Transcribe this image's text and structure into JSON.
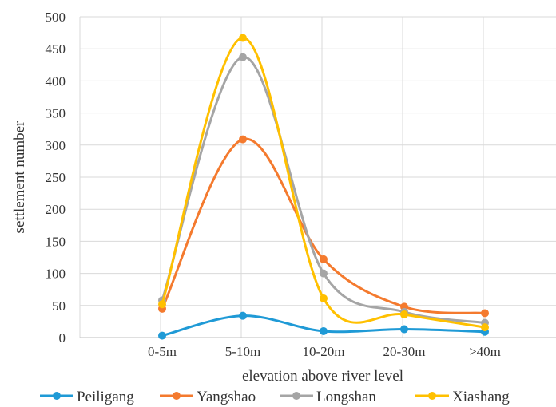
{
  "chart_data": {
    "type": "line",
    "smooth": true,
    "categories": [
      "0-5m",
      "5-10m",
      "10-20m",
      "20-30m",
      ">40m"
    ],
    "xlabel": "elevation above river level",
    "ylabel": "settlement number",
    "ylim": [
      0,
      500
    ],
    "yticks": [
      0,
      50,
      100,
      150,
      200,
      250,
      300,
      350,
      400,
      450,
      500
    ],
    "grid": true,
    "legend_position": "bottom",
    "series": [
      {
        "name": "Peiligang",
        "color": "#1f9ad6",
        "values": [
          3,
          34,
          10,
          13,
          9
        ]
      },
      {
        "name": "Yangshao",
        "color": "#f47a2e",
        "values": [
          45,
          309,
          122,
          48,
          38
        ]
      },
      {
        "name": "Longshan",
        "color": "#a5a5a5",
        "values": [
          58,
          437,
          100,
          40,
          23
        ]
      },
      {
        "name": "Xiashang",
        "color": "#ffc000",
        "values": [
          52,
          467,
          61,
          36,
          16
        ]
      }
    ]
  }
}
